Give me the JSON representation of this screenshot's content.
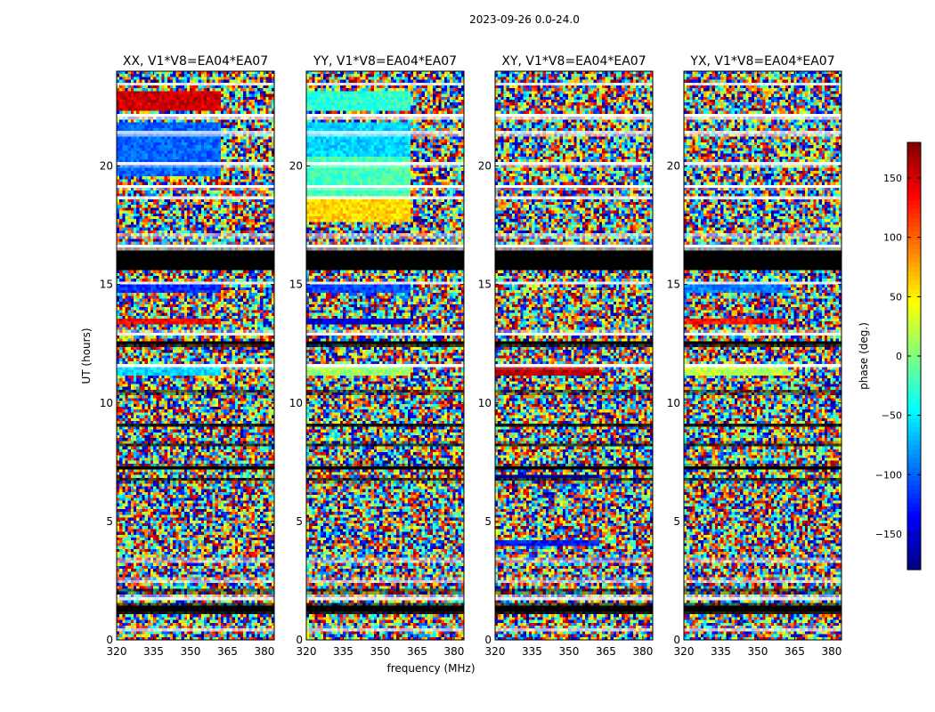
{
  "chart_data": {
    "type": "heatmap",
    "title": "2023-09-26 0.0-24.0",
    "xlabel": "frequency (MHz)",
    "ylabel": "UT (hours)",
    "xlim": [
      320,
      384
    ],
    "ylim": [
      0,
      24
    ],
    "x_ticks": [
      "320",
      "335",
      "350",
      "365",
      "380"
    ],
    "x_tick_values": [
      320,
      335,
      350,
      365,
      380
    ],
    "y_ticks": [
      "0",
      "5",
      "10",
      "15",
      "20"
    ],
    "y_tick_values": [
      0,
      5,
      10,
      15,
      20
    ],
    "colorbar": {
      "label": "phase (deg.)",
      "range": [
        -180,
        180
      ],
      "ticks": [
        "150",
        "100",
        "50",
        "0",
        "−50",
        "−100",
        "−150"
      ],
      "tick_values": [
        150,
        100,
        50,
        0,
        -50,
        -100,
        -150
      ]
    },
    "panels": [
      {
        "title": "XX, V1*V8=EA04*EA07",
        "seed": 11,
        "smooth_bands": [
          [
            11.2,
            11.5,
            -60
          ],
          [
            13.3,
            13.6,
            140
          ],
          [
            14.6,
            15.0,
            -120
          ],
          [
            19.6,
            21.8,
            -100
          ],
          [
            22.3,
            23.1,
            150
          ]
        ]
      },
      {
        "title": "YY, V1*V8=EA04*EA07",
        "seed": 23,
        "smooth_bands": [
          [
            11.2,
            11.5,
            10
          ],
          [
            13.3,
            13.6,
            -150
          ],
          [
            14.6,
            15.0,
            -110
          ],
          [
            17.6,
            18.7,
            60
          ],
          [
            18.7,
            20.4,
            -20
          ],
          [
            20.4,
            21.8,
            -60
          ],
          [
            22.3,
            23.1,
            -30
          ]
        ]
      },
      {
        "title": "XY, V1*V8=EA04*EA07",
        "seed": 37,
        "smooth_bands": [
          [
            11.2,
            11.5,
            160
          ],
          [
            6.8,
            7.0,
            -170
          ],
          [
            3.9,
            4.2,
            -130
          ]
        ]
      },
      {
        "title": "YX, V1*V8=EA04*EA07",
        "seed": 53,
        "smooth_bands": [
          [
            11.2,
            11.5,
            20
          ],
          [
            13.3,
            13.6,
            130
          ],
          [
            14.6,
            15.0,
            -90
          ]
        ]
      }
    ],
    "black_bands": [
      [
        15.6,
        16.5
      ],
      [
        1.1,
        1.5
      ],
      [
        12.4,
        12.6
      ],
      [
        10.4,
        10.5
      ],
      [
        9.0,
        9.1
      ],
      [
        8.2,
        8.3
      ],
      [
        7.2,
        7.35
      ],
      [
        6.7,
        6.8
      ],
      [
        2.0,
        2.1
      ]
    ],
    "white_gaps": [
      [
        23.4,
        23.5
      ],
      [
        22.0,
        22.2
      ],
      [
        21.3,
        21.45
      ],
      [
        20.0,
        20.15
      ],
      [
        19.05,
        19.2
      ],
      [
        18.6,
        18.7
      ],
      [
        17.0,
        17.1
      ],
      [
        16.5,
        16.7
      ],
      [
        15.0,
        15.1
      ],
      [
        12.85,
        13.0
      ],
      [
        11.5,
        11.65
      ],
      [
        3.3,
        3.4
      ],
      [
        2.45,
        2.55
      ],
      [
        1.7,
        1.85
      ],
      [
        0.4,
        0.5
      ]
    ]
  }
}
